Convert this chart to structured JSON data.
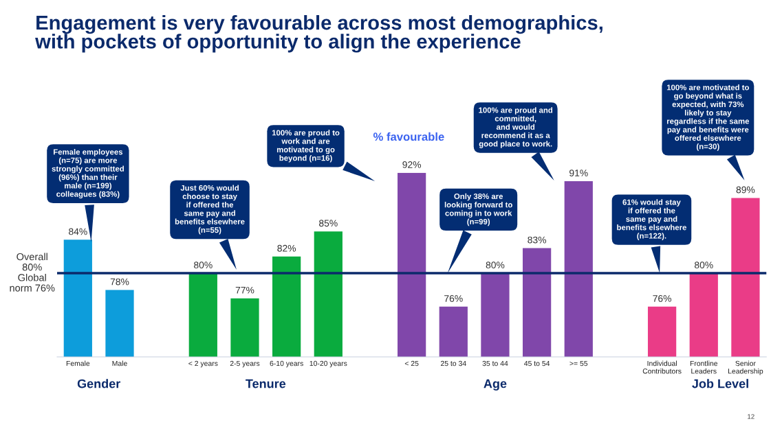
{
  "chart_data": {
    "type": "bar",
    "title": "Engagement is very favourable across most demographics,\nwith pockets of opportunity to align the experience",
    "categories": [
      "Female",
      "Male",
      null,
      "< 2 years",
      "2-5 years",
      "6-10 years",
      "10-20 years",
      null,
      "< 25",
      "25 to 34",
      "35 to 44",
      "45 to 54",
      ">= 55",
      null,
      "Individual\nContributors",
      "Frontline\nLeaders",
      "Senior\nLeadership"
    ],
    "values": [
      84,
      78,
      null,
      80,
      77,
      82,
      85,
      null,
      92,
      76,
      80,
      83,
      91,
      null,
      76,
      80,
      89
    ],
    "colors": [
      "#0d9ddb",
      "#0d9ddb",
      null,
      "#0aab3e",
      "#0aab3e",
      "#0aab3e",
      "#0aab3e",
      null,
      "#8047aa",
      "#8047aa",
      "#8047aa",
      "#8047aa",
      "#8047aa",
      null,
      "#ea3c87",
      "#ea3c87",
      "#ea3c87"
    ],
    "ylim": [
      70,
      92
    ],
    "data_labels": true,
    "value_labels": [
      "84%",
      "78%",
      null,
      "80%",
      "77%",
      "82%",
      "85%",
      null,
      "92%",
      "76%",
      "80%",
      "83%",
      "91%",
      null,
      "76%",
      "80%",
      "89%"
    ],
    "ref_lines": [
      {
        "axis": "y",
        "value": 80,
        "label": "Overall\n80%\nGlobal\nnorm 76%",
        "color": "#0b2a6b"
      }
    ],
    "annotations": [
      "Female employees\n(n=75) are more\nstrongly committed\n(96%) than their\nmale (n=199)\ncolleagues (83%)",
      "Just 60% would\nchoose to stay\nif offered the\nsame pay and\nbenefits elsewhere\n(n=55)",
      "100% are proud to\nwork and are\nmotivated to go\nbeyond (n=16)",
      "100% are proud and\ncommitted,\nand would\nrecommend it as a\ngood place to work.",
      "Only 38% are\nlooking forward to\ncoming in to work\n(n=99)",
      "61% would stay\nif offered the\nsame pay and\nbenefits elsewhere\n(n=122).",
      "100% are motivated to\ngo beyond what is\nexpected, with 73%\nlikely to stay\nregardless if the same\npay and benefits were\noffered elsewhere\n(n=30)",
      "% favourable",
      "Gender",
      "Tenure",
      "Age",
      "Job Level",
      "12"
    ],
    "grid": false,
    "legend": false
  }
}
